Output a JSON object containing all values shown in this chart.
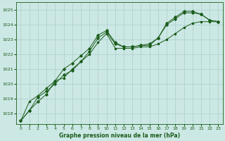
{
  "title": "Graphe pression niveau de la mer (hPa)",
  "bg_color": "#cce8e4",
  "grid_color": "#aacccc",
  "line_color": "#1a5c1a",
  "marker_color": "#1a5c1a",
  "xlim": [
    -0.5,
    23.5
  ],
  "ylim": [
    1017.3,
    1025.5
  ],
  "yticks": [
    1018,
    1019,
    1020,
    1021,
    1022,
    1023,
    1024,
    1025
  ],
  "xticks": [
    0,
    1,
    2,
    3,
    4,
    5,
    6,
    7,
    8,
    9,
    10,
    11,
    12,
    13,
    14,
    15,
    16,
    17,
    18,
    19,
    20,
    21,
    22,
    23
  ],
  "series1_x": [
    0,
    1,
    2,
    3,
    4,
    5,
    6,
    7,
    8,
    9,
    10,
    11,
    12,
    13,
    14,
    15,
    16,
    17,
    18,
    19,
    20,
    21,
    22,
    23
  ],
  "series1_y": [
    1017.5,
    1018.2,
    1018.8,
    1019.3,
    1020.2,
    1021.0,
    1021.4,
    1021.9,
    1022.4,
    1023.3,
    1023.6,
    1022.8,
    1022.5,
    1022.5,
    1022.6,
    1022.6,
    1023.1,
    1024.1,
    1024.5,
    1024.9,
    1024.9,
    1024.7,
    1024.3,
    1024.2
  ],
  "series2_x": [
    0,
    1,
    2,
    3,
    4,
    5,
    6,
    7,
    8,
    9,
    10,
    11,
    12,
    13,
    14,
    15,
    16,
    17,
    18,
    19,
    20,
    21,
    22,
    23
  ],
  "series2_y": [
    1017.5,
    1018.8,
    1019.2,
    1019.7,
    1020.2,
    1020.4,
    1021.0,
    1021.5,
    1022.0,
    1022.8,
    1023.4,
    1022.4,
    1022.4,
    1022.4,
    1022.5,
    1022.5,
    1022.7,
    1023.0,
    1023.4,
    1023.8,
    1024.1,
    1024.2,
    1024.2,
    1024.2
  ],
  "series3_x": [
    0,
    1,
    2,
    3,
    4,
    5,
    6,
    7,
    8,
    9,
    10,
    11,
    12,
    13,
    14,
    15,
    16,
    17,
    18,
    19,
    20,
    21,
    22,
    23
  ],
  "series3_y": [
    1017.5,
    1018.2,
    1019.1,
    1019.5,
    1020.0,
    1020.6,
    1020.9,
    1021.5,
    1022.2,
    1023.1,
    1023.5,
    1022.7,
    1022.5,
    1022.5,
    1022.6,
    1022.7,
    1023.1,
    1024.0,
    1024.4,
    1024.8,
    1024.8,
    1024.7,
    1024.3,
    1024.2
  ],
  "title_fontsize": 5.5,
  "tick_fontsize": 4.5,
  "linewidth": 0.7,
  "markersize1": 1.8,
  "markersize2": 1.8,
  "markersize3": 2.2
}
